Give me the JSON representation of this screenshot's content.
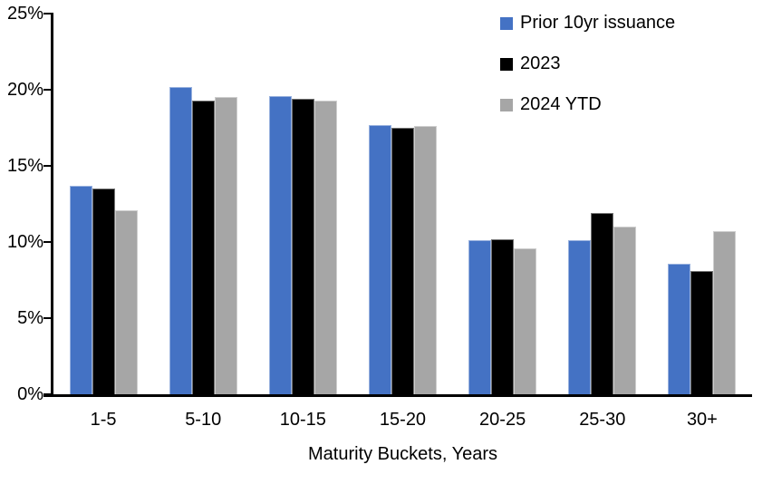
{
  "chart_data": {
    "type": "bar",
    "title": "",
    "xlabel": "Maturity Buckets, Years",
    "ylabel": "",
    "ylim": [
      0,
      25
    ],
    "grid": false,
    "legend_position": "top-right",
    "yticks": [
      {
        "value": 0,
        "label": "0%"
      },
      {
        "value": 5,
        "label": "5%"
      },
      {
        "value": 10,
        "label": "10%"
      },
      {
        "value": 15,
        "label": "15%"
      },
      {
        "value": 20,
        "label": "20%"
      },
      {
        "value": 25,
        "label": "25%"
      }
    ],
    "categories": [
      "1-5",
      "5-10",
      "10-15",
      "15-20",
      "20-25",
      "25-30",
      "30+"
    ],
    "series": [
      {
        "name": "Prior 10yr issuance",
        "color": "#4472C4",
        "values": [
          13.7,
          20.2,
          19.6,
          17.7,
          10.1,
          10.1,
          8.6
        ]
      },
      {
        "name": "2023",
        "color": "#000000",
        "values": [
          13.5,
          19.3,
          19.4,
          17.5,
          10.2,
          11.9,
          8.1
        ]
      },
      {
        "name": "2024 YTD",
        "color": "#A6A6A6",
        "values": [
          12.1,
          19.5,
          19.3,
          17.6,
          9.6,
          11.0,
          10.7
        ]
      }
    ],
    "axis_color": "#000000",
    "background_color": "#FFFFFF"
  }
}
